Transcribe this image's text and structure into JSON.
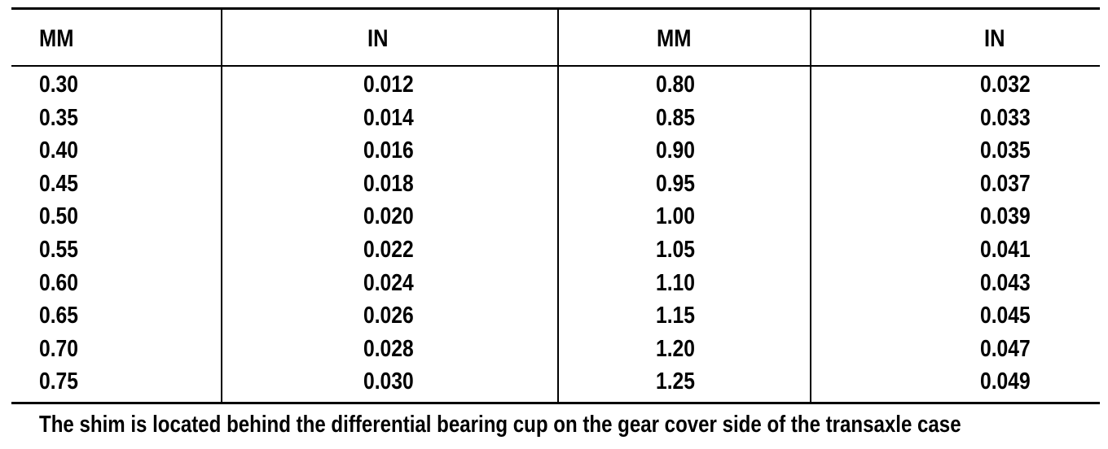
{
  "table": {
    "headers": [
      "MM",
      "IN",
      "MM",
      "IN"
    ],
    "columns": [
      [
        "0.30",
        "0.35",
        "0.40",
        "0.45",
        "0.50",
        "0.55",
        "0.60",
        "0.65",
        "0.70",
        "0.75"
      ],
      [
        "0.012",
        "0.014",
        "0.016",
        "0.018",
        "0.020",
        "0.022",
        "0.024",
        "0.026",
        "0.028",
        "0.030"
      ],
      [
        "0.80",
        "0.85",
        "0.90",
        "0.95",
        "1.00",
        "1.05",
        "1.10",
        "1.15",
        "1.20",
        "1.25"
      ],
      [
        "0.032",
        "0.033",
        "0.035",
        "0.037",
        "0.039",
        "0.041",
        "0.043",
        "0.045",
        "0.047",
        "0.049"
      ]
    ]
  },
  "caption": "The shim is located behind the differential bearing cup on the gear cover side of the transaxle case"
}
